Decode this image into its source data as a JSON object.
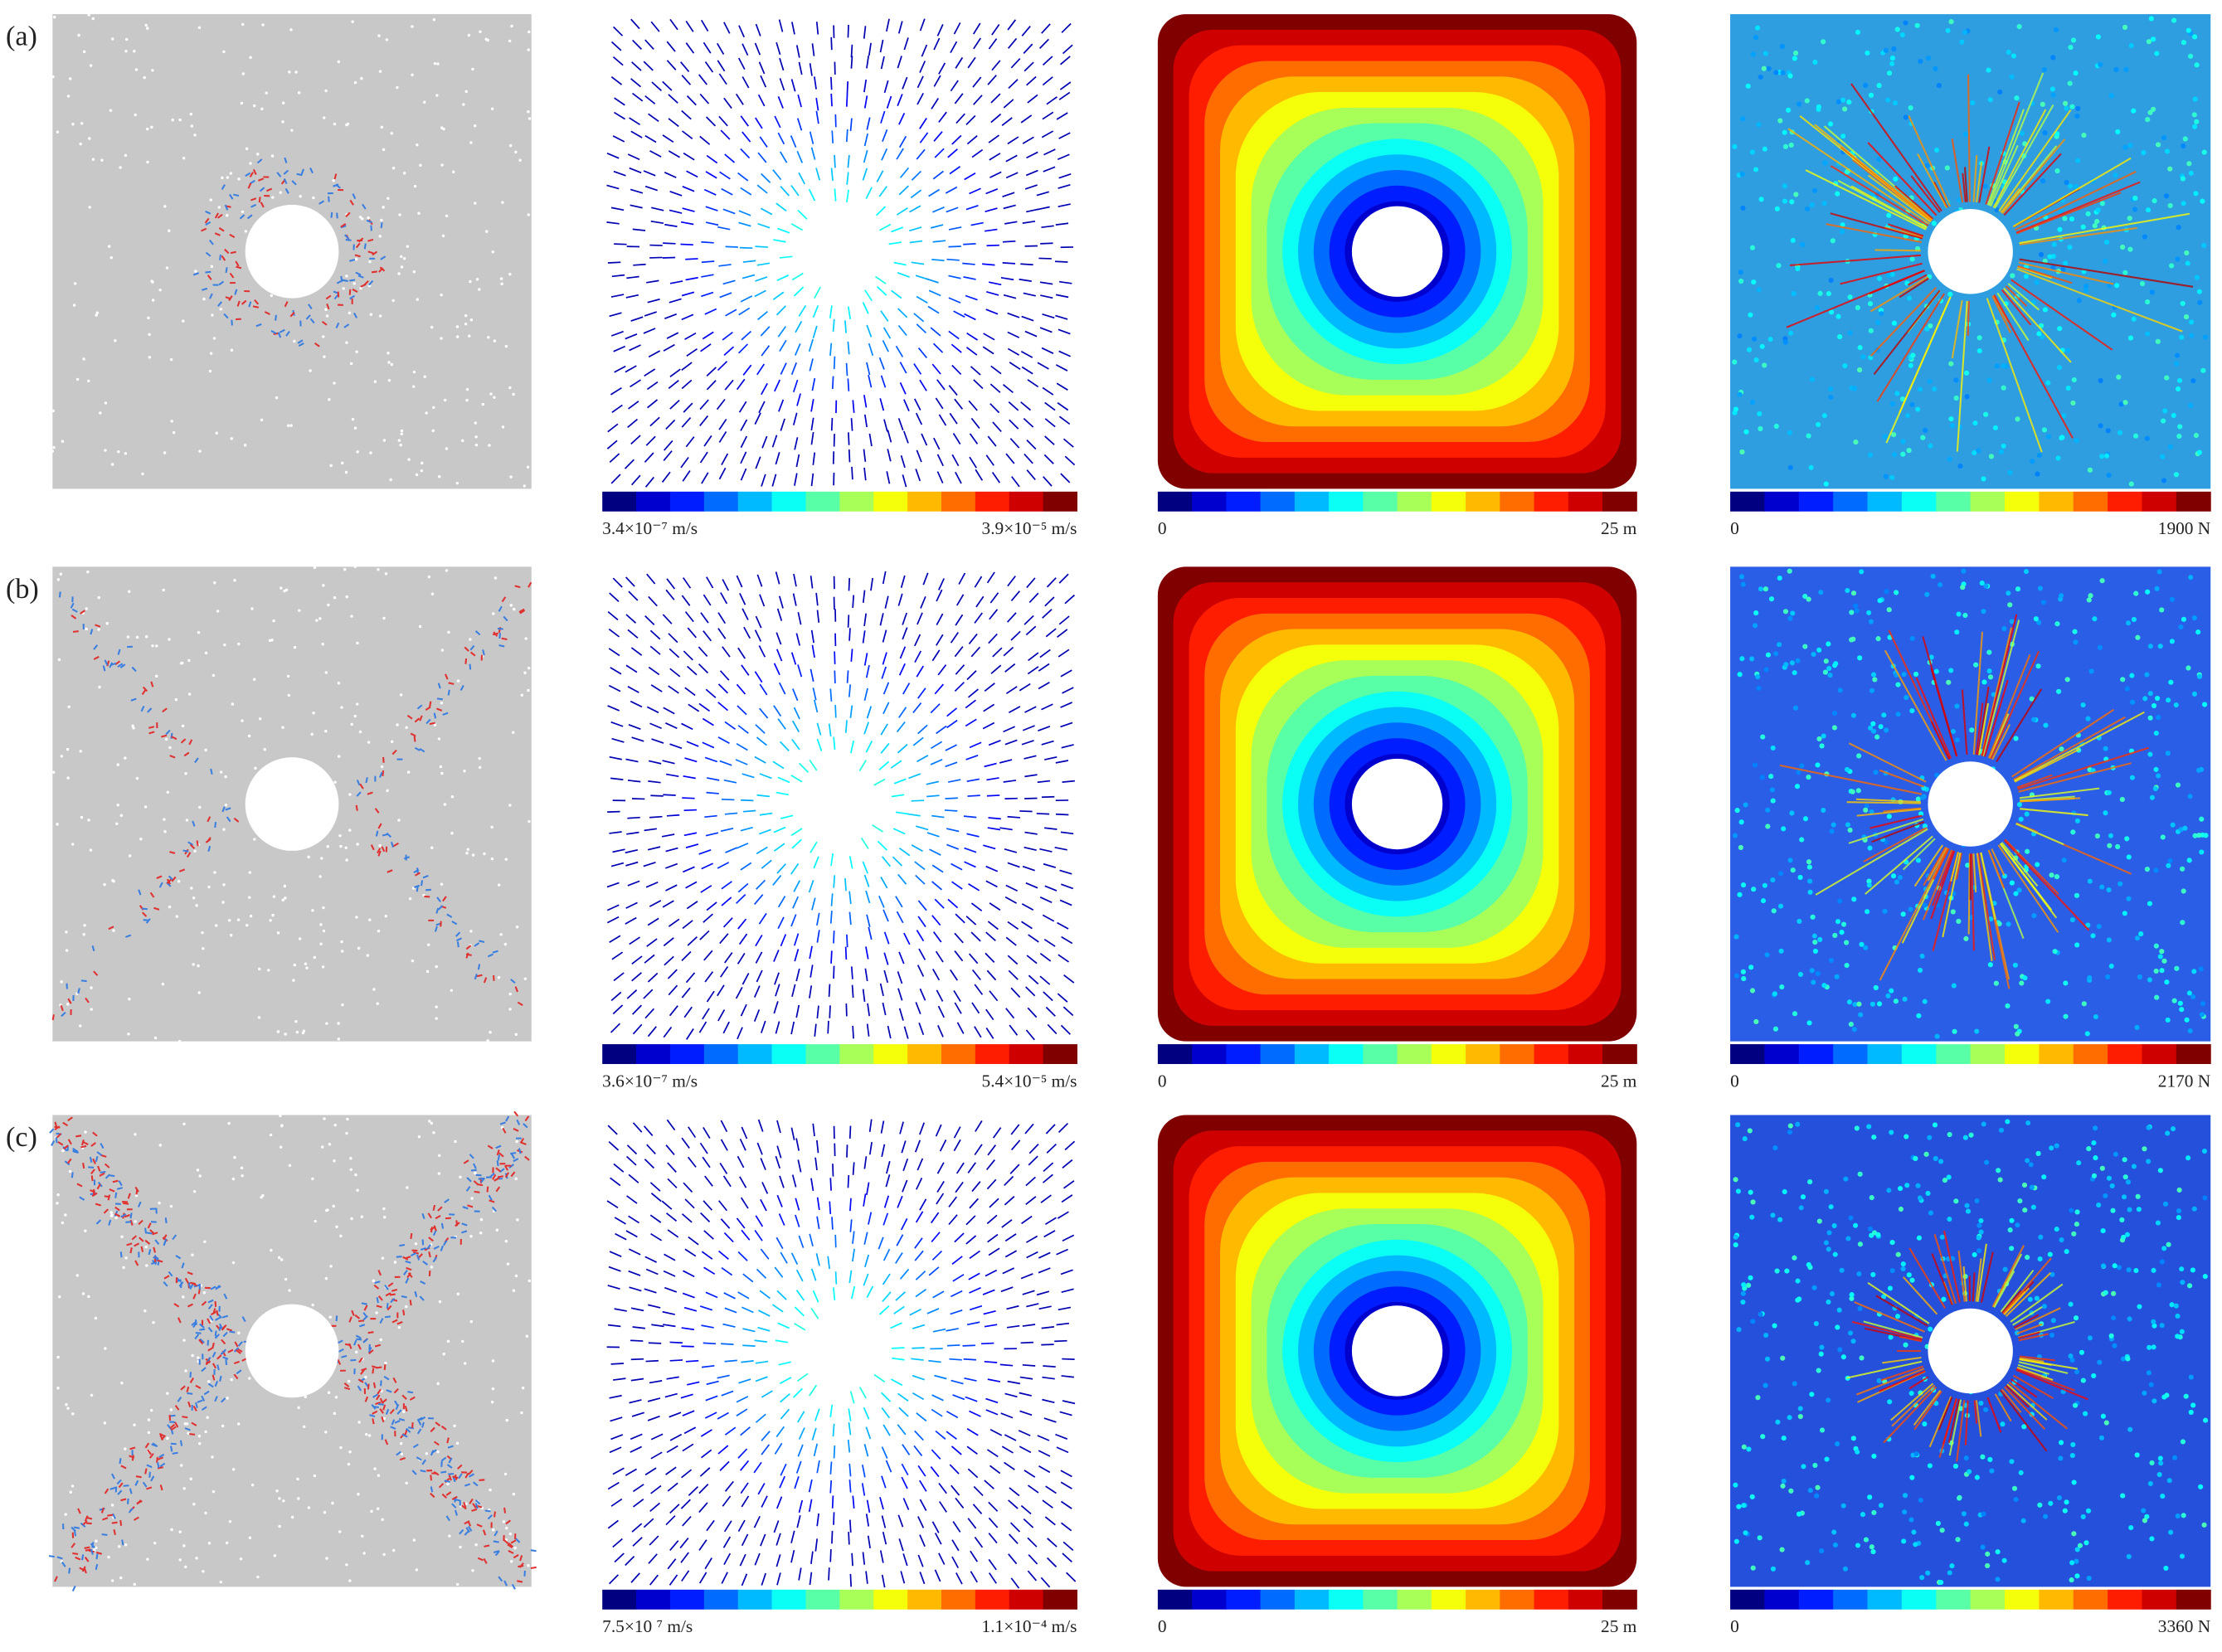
{
  "rows": [
    {
      "label": "(a)",
      "velocity_scale": {
        "min": "3.4×10⁻⁷ m/s",
        "max": "3.9×10⁻⁵ m/s"
      },
      "displacement_scale": {
        "min": "0",
        "max": "25 m"
      },
      "force_scale": {
        "min": "0",
        "max": "1900 N"
      }
    },
    {
      "label": "(b)",
      "velocity_scale": {
        "min": "3.6×10⁻⁷ m/s",
        "max": "5.4×10⁻⁵ m/s"
      },
      "displacement_scale": {
        "min": "0",
        "max": "25 m"
      },
      "force_scale": {
        "min": "0",
        "max": "2170 N"
      }
    },
    {
      "label": "(c)",
      "velocity_scale": {
        "min": "7.5×10 ⁷ m/s",
        "max": "1.1×10⁻⁴ m/s"
      },
      "displacement_scale": {
        "min": "0",
        "max": "25 m"
      },
      "force_scale": {
        "min": "0",
        "max": "3360 N"
      }
    }
  ]
}
